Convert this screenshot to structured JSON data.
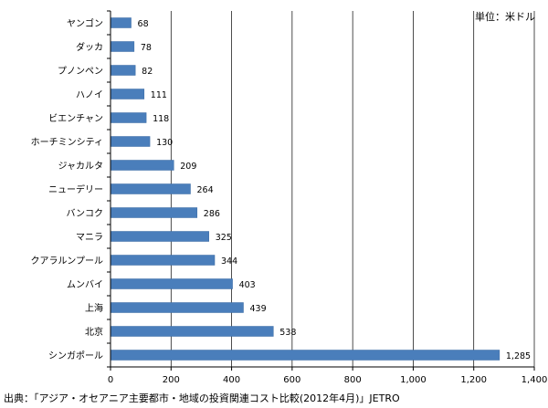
{
  "unit_label": "単位：米ドル",
  "source": "出典：「アジア・オセアニア主要都市・地域の投資関連コスト比較(2012年4月)」JETRO",
  "chart_data": {
    "type": "bar",
    "orientation": "horizontal",
    "categories": [
      "ヤンゴン",
      "ダッカ",
      "プノンペン",
      "ハノイ",
      "ビエンチャン",
      "ホーチミンシティ",
      "ジャカルタ",
      "ニューデリー",
      "バンコク",
      "マニラ",
      "クアラルンプール",
      "ムンバイ",
      "上海",
      "北京",
      "シンガポール"
    ],
    "values": [
      68,
      78,
      82,
      111,
      118,
      130,
      209,
      264,
      286,
      325,
      344,
      403,
      439,
      538,
      1285
    ],
    "value_labels": [
      "68",
      "78",
      "82",
      "111",
      "118",
      "130",
      "209",
      "264",
      "286",
      "325",
      "344",
      "403",
      "439",
      "538",
      "1,285"
    ],
    "xlim": [
      0,
      1400
    ],
    "xticks": [
      0,
      200,
      400,
      600,
      800,
      1000,
      1200,
      1400
    ],
    "xtick_labels": [
      "0",
      "200",
      "400",
      "600",
      "800",
      "1,000",
      "1,200",
      "1,400"
    ],
    "grid": true,
    "bar_color": "#4a7ebb",
    "title": "",
    "xlabel": "",
    "ylabel": ""
  }
}
